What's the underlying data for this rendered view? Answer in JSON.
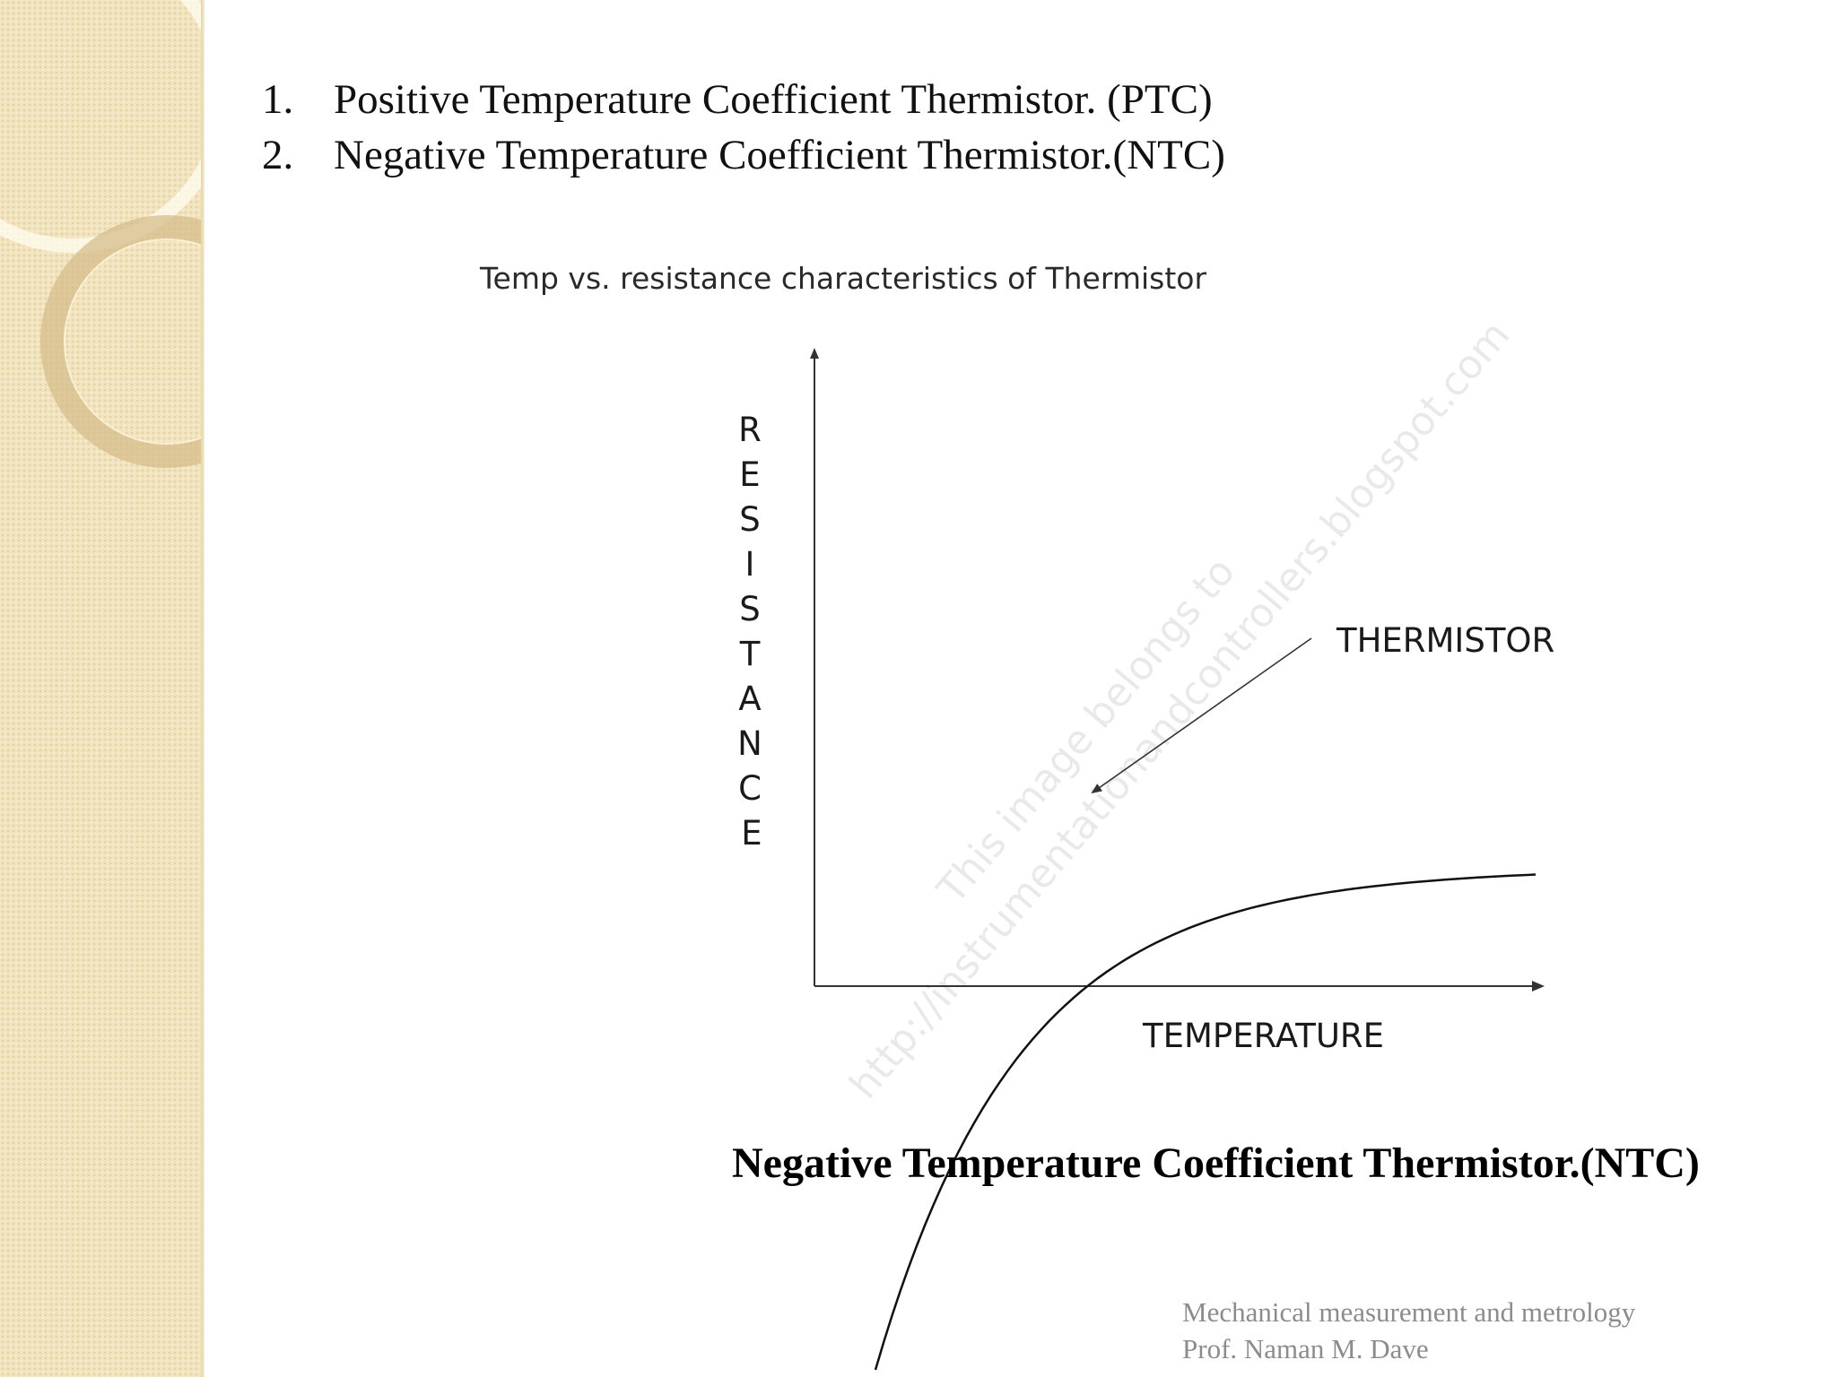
{
  "thermistor_types": [
    {
      "number": "1.",
      "text": "Positive Temperature Coefficient Thermistor. (PTC)"
    },
    {
      "number": "2.",
      "text": "Negative Temperature Coefficient Thermistor.(NTC)"
    }
  ],
  "chart_data": {
    "type": "line",
    "title": "Temp vs. resistance characteristics of Thermistor",
    "xlabel": "TEMPERATURE",
    "ylabel": "RESISTANCE",
    "ylabel_letters": [
      "R",
      "E",
      "S",
      "I",
      "S",
      "T",
      "A",
      "N",
      "C",
      "E"
    ],
    "series": [
      {
        "name": "THERMISTOR",
        "shape": "exponential decay"
      }
    ],
    "annotation": "THERMISTOR",
    "xlim": [
      0,
      1
    ],
    "ylim": [
      0,
      1
    ],
    "grid": false,
    "ticks": false,
    "line_color": "#111111"
  },
  "watermark": {
    "lines": [
      "This image belongs to",
      "http://instrumentationandcontrollers.blogspot.com"
    ]
  },
  "caption": "Negative Temperature Coefficient Thermistor.(NTC)",
  "footer": {
    "course": "Mechanical  measurement  and metrology",
    "author": "Prof. Naman  M. Dave"
  },
  "theme": {
    "side_panel_color": "#f1e3bd",
    "text_color": "#111111",
    "footer_color": "#8c8c8c"
  }
}
